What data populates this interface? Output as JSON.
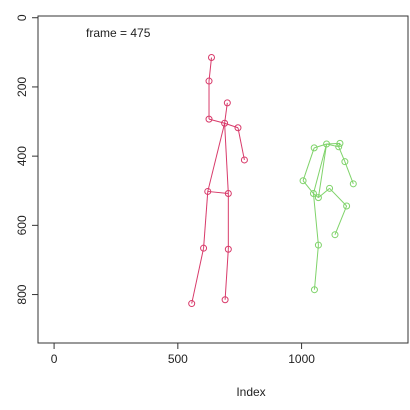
{
  "chart_data": {
    "type": "scatter",
    "annotation": "frame = 475",
    "title": "",
    "xlabel": "Index",
    "ylabel": "",
    "xlim": [
      -65,
      1430
    ],
    "ylim": [
      940,
      -5
    ],
    "y_reversed": true,
    "x_ticks": [
      0,
      500,
      1000
    ],
    "y_ticks": [
      0,
      200,
      400,
      600,
      800
    ],
    "grid": false,
    "legend": "none",
    "series": [
      {
        "color": "#d83a6a",
        "points": [
          {
            "x": 636,
            "y": 115
          },
          {
            "x": 626,
            "y": 183
          },
          {
            "x": 626,
            "y": 293
          },
          {
            "x": 689,
            "y": 305
          },
          {
            "x": 700,
            "y": 246
          },
          {
            "x": 743,
            "y": 318
          },
          {
            "x": 769,
            "y": 411
          },
          {
            "x": 621,
            "y": 502
          },
          {
            "x": 704,
            "y": 508
          },
          {
            "x": 604,
            "y": 666
          },
          {
            "x": 704,
            "y": 669
          },
          {
            "x": 556,
            "y": 826
          },
          {
            "x": 691,
            "y": 815
          }
        ],
        "edges": [
          [
            0,
            1
          ],
          [
            1,
            2
          ],
          [
            2,
            3
          ],
          [
            3,
            4
          ],
          [
            3,
            5
          ],
          [
            5,
            6
          ],
          [
            3,
            7
          ],
          [
            3,
            8
          ],
          [
            7,
            8
          ],
          [
            7,
            9
          ],
          [
            9,
            11
          ],
          [
            8,
            10
          ],
          [
            10,
            12
          ]
        ]
      },
      {
        "color": "#7fd36a",
        "points": [
          {
            "x": 1051,
            "y": 376
          },
          {
            "x": 1101,
            "y": 365
          },
          {
            "x": 1155,
            "y": 363
          },
          {
            "x": 1150,
            "y": 373
          },
          {
            "x": 1175,
            "y": 416
          },
          {
            "x": 1209,
            "y": 480
          },
          {
            "x": 1006,
            "y": 471
          },
          {
            "x": 1048,
            "y": 508
          },
          {
            "x": 1068,
            "y": 520
          },
          {
            "x": 1113,
            "y": 493
          },
          {
            "x": 1182,
            "y": 544
          },
          {
            "x": 1135,
            "y": 627
          },
          {
            "x": 1068,
            "y": 657
          },
          {
            "x": 1052,
            "y": 786
          }
        ],
        "edges": [
          [
            0,
            1
          ],
          [
            1,
            2
          ],
          [
            2,
            3
          ],
          [
            1,
            3
          ],
          [
            3,
            4
          ],
          [
            4,
            5
          ],
          [
            0,
            6
          ],
          [
            6,
            7
          ],
          [
            7,
            8
          ],
          [
            1,
            8
          ],
          [
            8,
            9
          ],
          [
            9,
            10
          ],
          [
            10,
            11
          ],
          [
            7,
            12
          ],
          [
            12,
            13
          ],
          [
            1,
            7
          ]
        ]
      }
    ]
  }
}
